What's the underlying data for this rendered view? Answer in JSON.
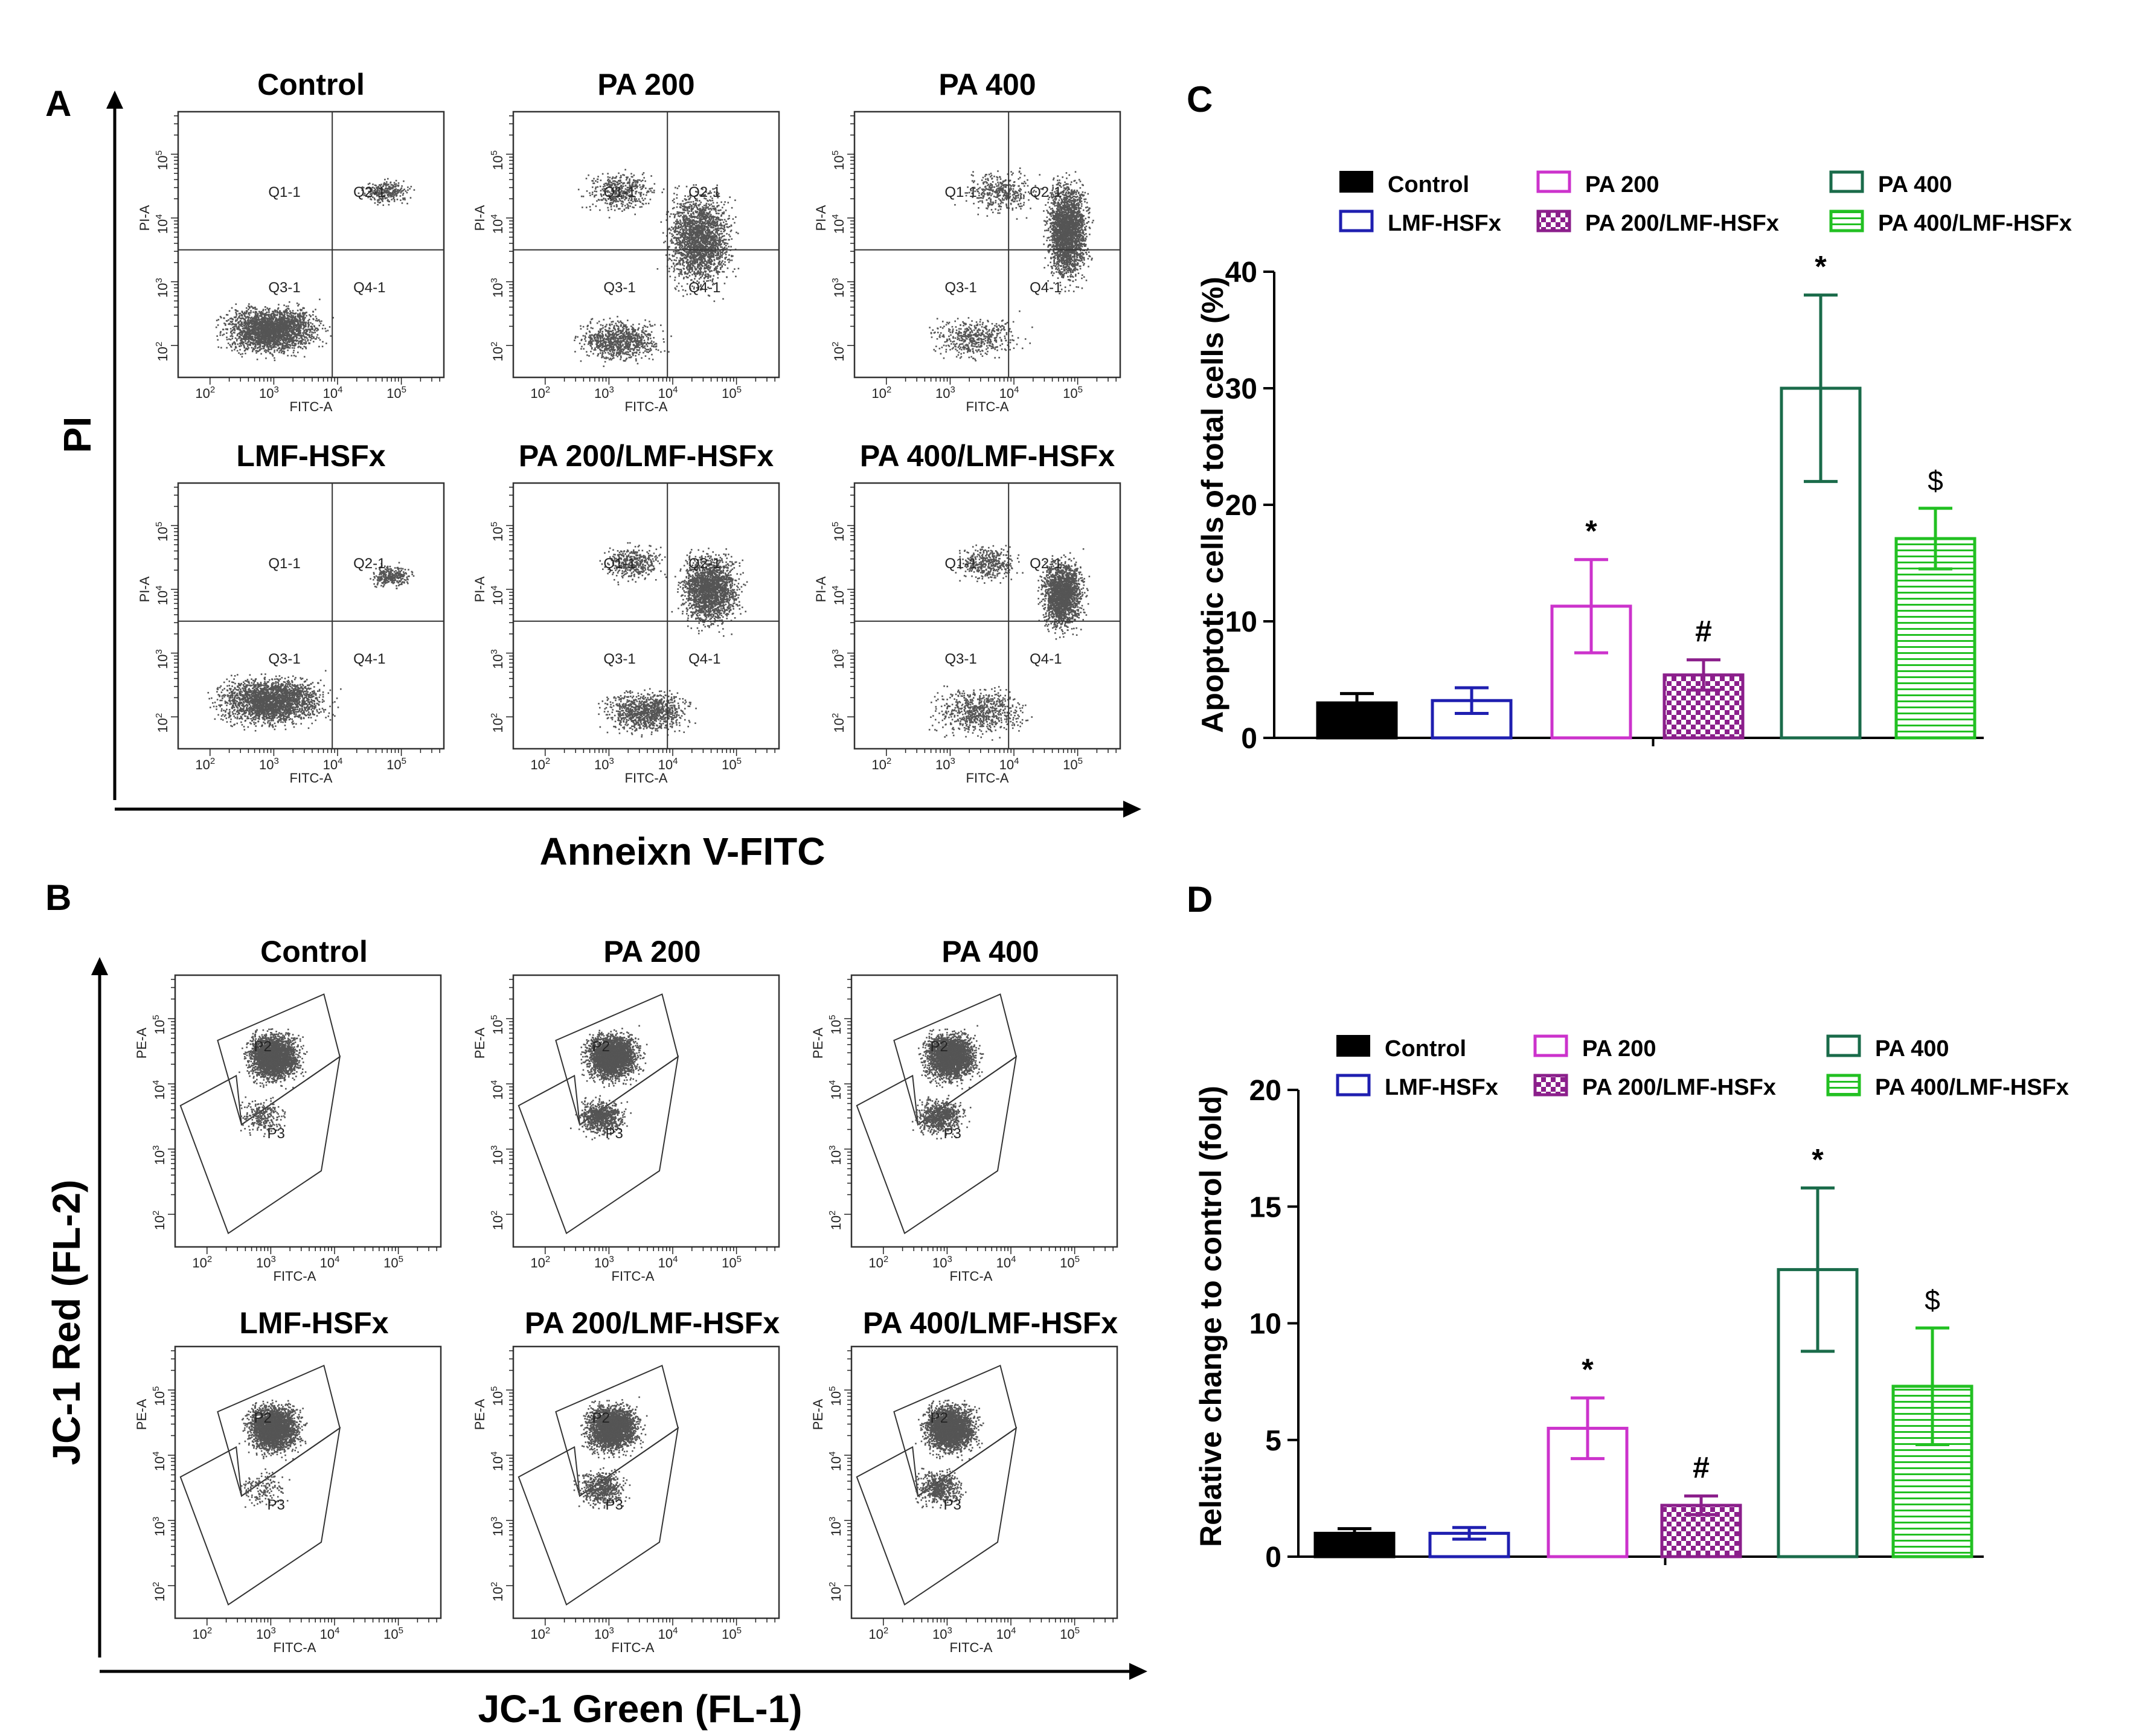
{
  "panel_letters": {
    "A": "A",
    "B": "B",
    "C": "C",
    "D": "D"
  },
  "panel_a": {
    "y_axis_label": "PI",
    "x_axis_label": "Anneixn V-FITC",
    "plot_titles": [
      "Control",
      "PA 200",
      "PA 400",
      "LMF-HSFx",
      "PA 200/LMF-HSFx",
      "PA 400/LMF-HSFx"
    ],
    "plot_x_label": "FITC-A",
    "plot_y_label": "PI-A",
    "quadrant_labels": [
      "Q1-1",
      "Q2-1",
      "Q3-1",
      "Q4-1"
    ],
    "tick_labels": [
      "10",
      "10",
      "10",
      "10"
    ],
    "tick_exponents": [
      "2",
      "3",
      "4",
      "5"
    ]
  },
  "panel_b": {
    "y_axis_label": "JC-1 Red (FL-2)",
    "x_axis_label": "JC-1 Green (FL-1)",
    "plot_titles": [
      "Control",
      "PA 200",
      "PA 400",
      "LMF-HSFx",
      "PA 200/LMF-HSFx",
      "PA 400/LMF-HSFx"
    ],
    "plot_x_label": "FITC-A",
    "plot_y_label": "PE-A",
    "gate_labels": [
      "P2",
      "P3"
    ]
  },
  "legend": {
    "labels": [
      "Control",
      "PA 200",
      "PA 400",
      "LMF-HSFx",
      "PA 200/LMF-HSFx",
      "PA 400/LMF-HSFx"
    ]
  },
  "colors": {
    "control": "#000000",
    "lmf_hsfx": "#1f1fb0",
    "pa200": "#cc33cc",
    "pa200_lmf": "#8b1f8b",
    "pa400": "#1a6b4a",
    "pa400_lmf": "#22c022",
    "dots": "#555555"
  },
  "chart_data": [
    {
      "panel": "C",
      "type": "bar",
      "categories": [
        "Control",
        "LMF-HSFx",
        "PA 200",
        "PA 200/LMF-HSFx",
        "PA 400",
        "PA 400/LMF-HSFx"
      ],
      "values": [
        3.0,
        3.2,
        11.3,
        5.4,
        30.0,
        17.1
      ],
      "errors": [
        0.8,
        1.1,
        4.0,
        1.3,
        8.0,
        2.6
      ],
      "significance": [
        "",
        "",
        "*",
        "#",
        "*",
        "$"
      ],
      "ylabel": "Apoptotic cells of total cells (%)",
      "xlabel": "",
      "ylim": [
        0,
        40
      ],
      "yticks": [
        0,
        10,
        20,
        30,
        40
      ],
      "ytick_labels": [
        "0",
        "10",
        "20",
        "30",
        "40"
      ]
    },
    {
      "panel": "D",
      "type": "bar",
      "categories": [
        "Control",
        "LMF-HSFx",
        "PA 200",
        "PA 200/LMF-HSFx",
        "PA 400",
        "PA 400/LMF-HSFx"
      ],
      "values": [
        1.0,
        1.0,
        5.5,
        2.2,
        12.3,
        7.3
      ],
      "errors": [
        0.2,
        0.25,
        1.3,
        0.4,
        3.5,
        2.5
      ],
      "significance": [
        "",
        "",
        "*",
        "#",
        "*",
        "$"
      ],
      "ylabel": "Relative change to control (fold)",
      "xlabel": "",
      "ylim": [
        0,
        20
      ],
      "yticks": [
        0,
        5,
        10,
        15,
        20
      ],
      "ytick_labels": [
        "0",
        "5",
        "10",
        "15",
        "20"
      ]
    }
  ]
}
